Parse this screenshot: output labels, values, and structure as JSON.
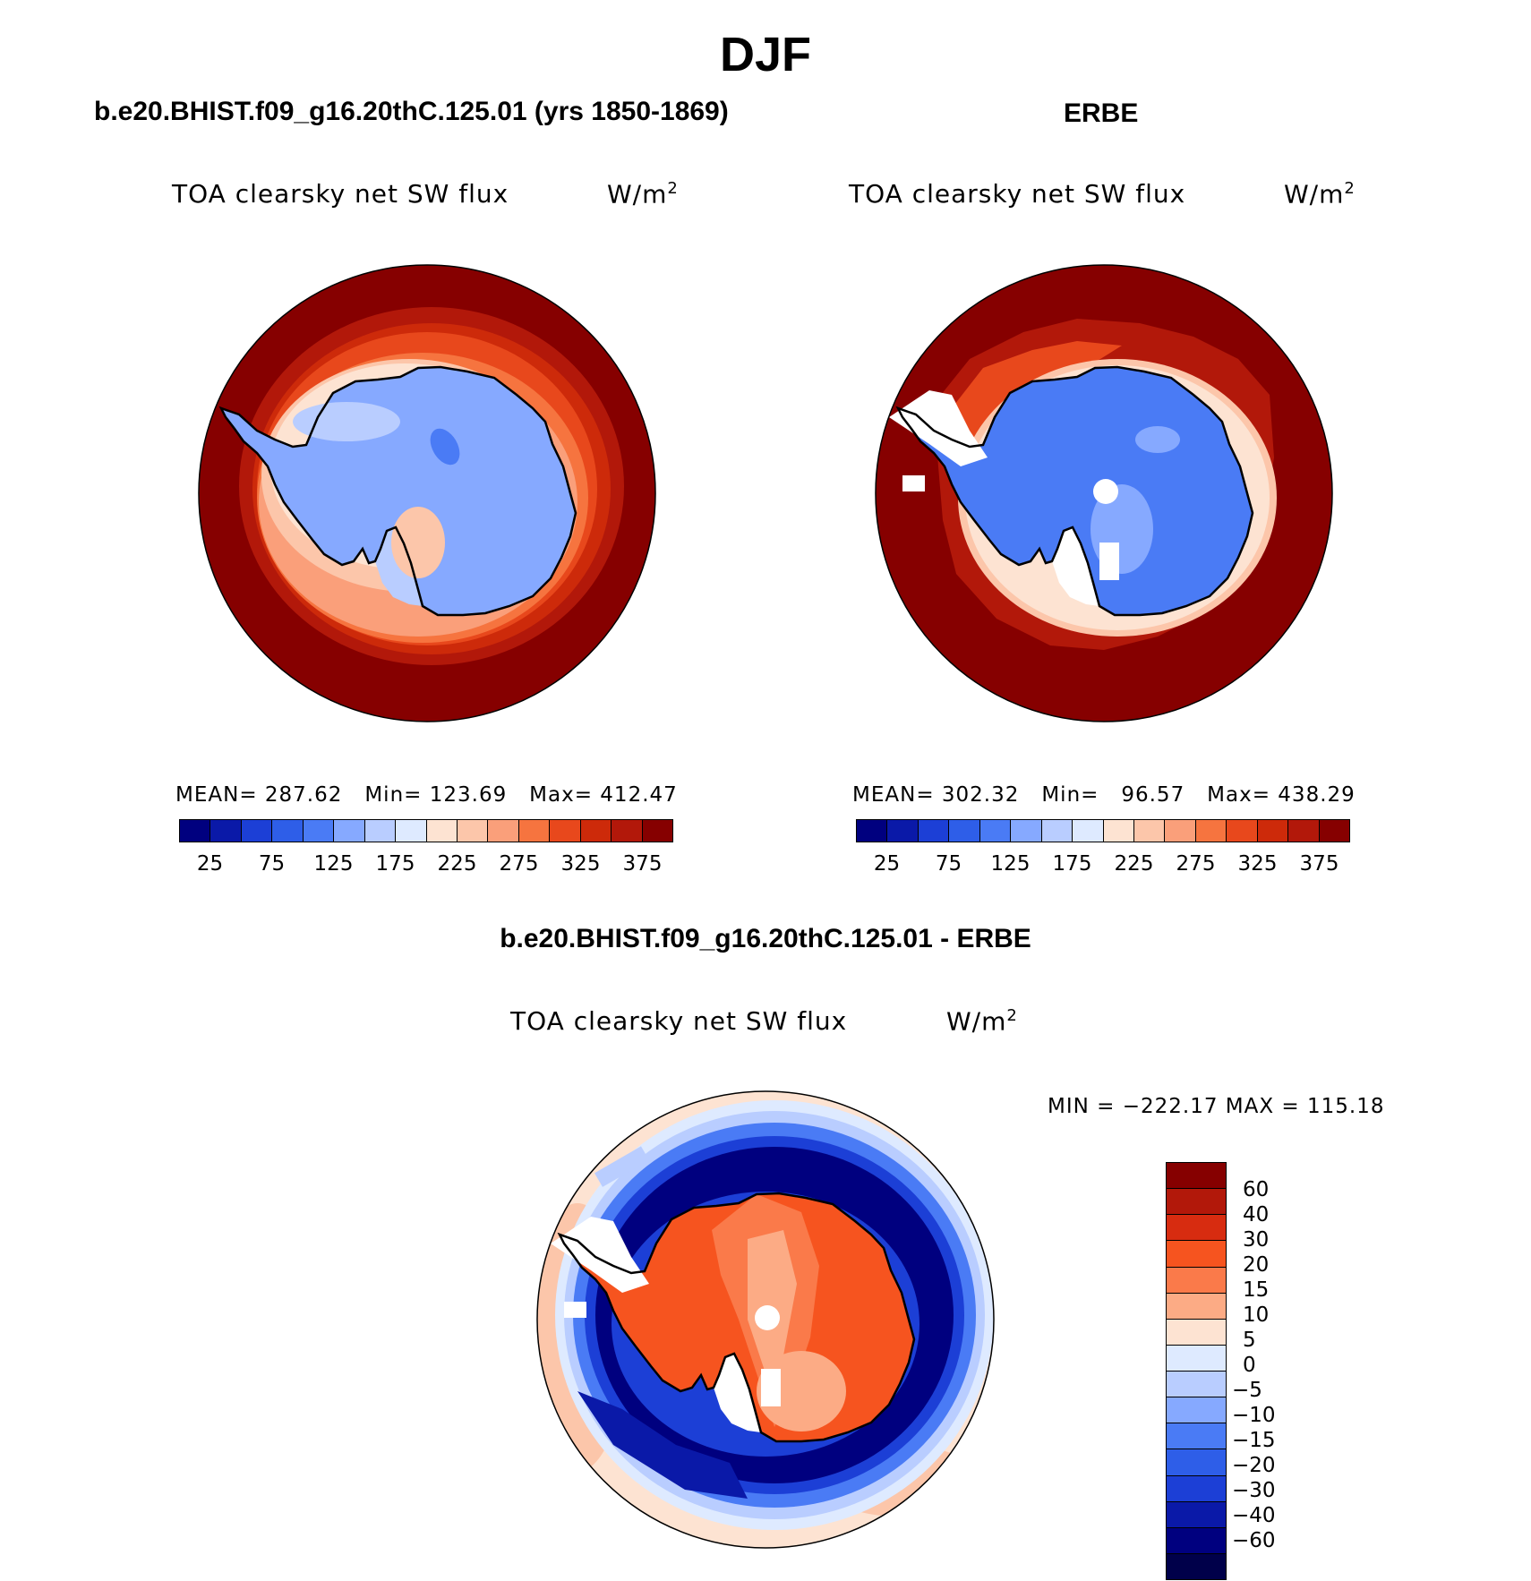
{
  "figure": {
    "main_title": "DJF",
    "colors": {
      "seq": [
        "#00007f",
        "#0a19a8",
        "#1c3fd6",
        "#2e5ee8",
        "#4a7bf5",
        "#86a9ff",
        "#b9cdff",
        "#deeaff",
        "#fde3d2",
        "#fcc6aa",
        "#fa9f7a",
        "#f6743f",
        "#e8481c",
        "#cd2a0a",
        "#b2180a",
        "#860000"
      ],
      "div": [
        "#860000",
        "#b2180a",
        "#d72c10",
        "#f6541f",
        "#fa7a4a",
        "#fcab85",
        "#fde3d2",
        "#deeaff",
        "#b9cdff",
        "#86a9ff",
        "#4a7bf5",
        "#2e5ee8",
        "#1c3fd6",
        "#0a19a8",
        "#00007f"
      ]
    }
  },
  "panels": [
    {
      "title": "b.e20.BHIST.f09_g16.20thC.125.01 (yrs 1850-1869)",
      "field_label": "TOA clearsky net SW flux",
      "units": "W/m",
      "units_exp": "2",
      "stats": {
        "mean_label": "MEAN=",
        "mean": "287.62",
        "min_label": "Min=",
        "min": "123.69",
        "max_label": "Max=",
        "max": "412.47"
      },
      "colorbar_labels": [
        "25",
        "75",
        "125",
        "175",
        "225",
        "275",
        "325",
        "375"
      ]
    },
    {
      "title": "ERBE",
      "field_label": "TOA clearsky net SW flux",
      "units": "W/m",
      "units_exp": "2",
      "stats": {
        "mean_label": "MEAN=",
        "mean": "302.32",
        "min_label": "Min=",
        "min": "96.57",
        "max_label": "Max=",
        "max": "438.29"
      },
      "colorbar_labels": [
        "25",
        "75",
        "125",
        "175",
        "225",
        "275",
        "325",
        "375"
      ]
    },
    {
      "title": "b.e20.BHIST.f09_g16.20thC.125.01 - ERBE",
      "field_label": "TOA clearsky net SW flux",
      "units": "W/m",
      "units_exp": "2",
      "minmax_text": "MIN = −222.17  MAX = 115.18",
      "colorbar_labels": [
        "60",
        "40",
        "30",
        "20",
        "15",
        "10",
        "5",
        "0",
        "−5",
        "−10",
        "−15",
        "−20",
        "−30",
        "−40",
        "−60"
      ]
    }
  ]
}
